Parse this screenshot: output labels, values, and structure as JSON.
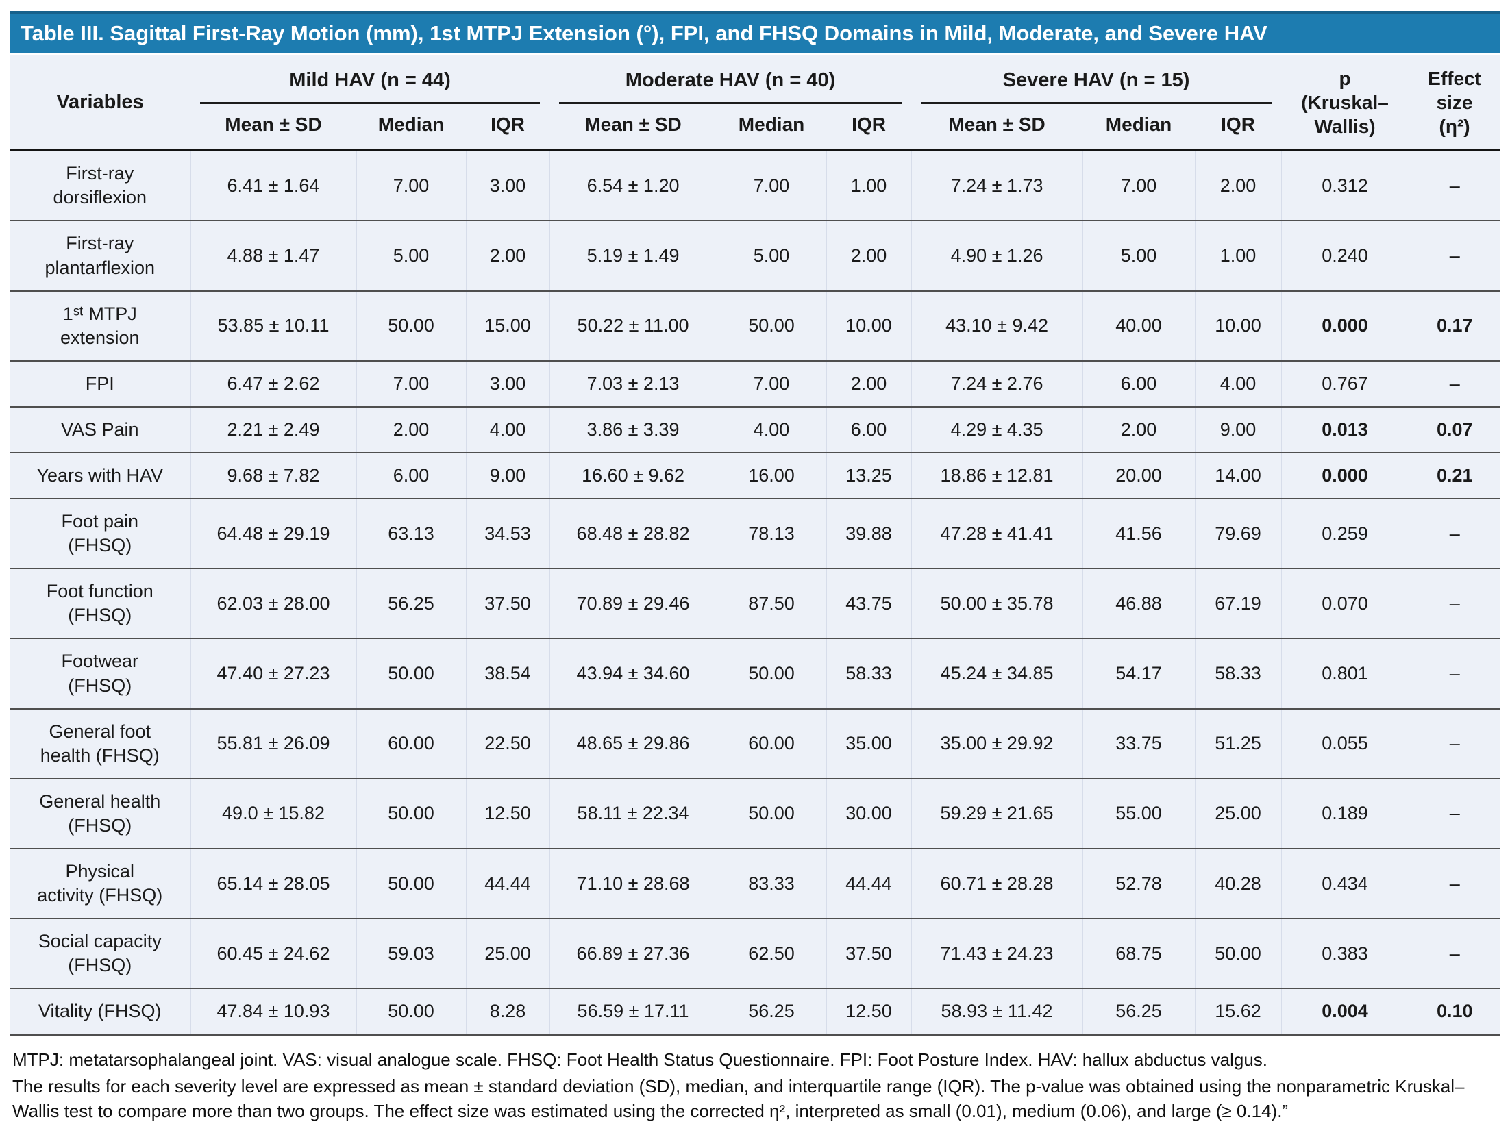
{
  "title": "Table III. Sagittal First-Ray Motion (mm), 1st MTPJ Extension (°), FPI, and FHSQ Domains in Mild, Moderate, and Severe HAV",
  "colors": {
    "header_bar_blue": "#1d7cb0",
    "header_bar_edge": "#16618c",
    "table_background": "#edf1f8",
    "rule_dark": "#4f4f4f",
    "title_text": "#ffffff"
  },
  "header": {
    "variables_label": "Variables",
    "groups": [
      {
        "label": "Mild HAV (n = 44)"
      },
      {
        "label": "Moderate HAV (n = 40)"
      },
      {
        "label": "Severe HAV (n = 15)"
      }
    ],
    "subheaders": [
      "Mean ± SD",
      "Median",
      "IQR"
    ],
    "p_label": "p\n(Kruskal–\nWallis)",
    "effect_label": "Effect\nsize\n(η²)"
  },
  "rows": [
    {
      "label": "First-ray\ndorsiflexion",
      "mild": [
        "6.41 ± 1.64",
        "7.00",
        "3.00"
      ],
      "moderate": [
        "6.54 ± 1.20",
        "7.00",
        "1.00"
      ],
      "severe": [
        "7.24 ± 1.73",
        "7.00",
        "2.00"
      ],
      "p": "0.312",
      "effect": "–",
      "significant": false
    },
    {
      "label": "First-ray\nplantarflexion",
      "mild": [
        "4.88 ± 1.47",
        "5.00",
        "2.00"
      ],
      "moderate": [
        "5.19 ± 1.49",
        "5.00",
        "2.00"
      ],
      "severe": [
        "4.90 ± 1.26",
        "5.00",
        "1.00"
      ],
      "p": "0.240",
      "effect": "–",
      "significant": false
    },
    {
      "label": "1ˢᵗ MTPJ\nextension",
      "mild": [
        "53.85 ± 10.11",
        "50.00",
        "15.00"
      ],
      "moderate": [
        "50.22 ± 11.00",
        "50.00",
        "10.00"
      ],
      "severe": [
        "43.10 ± 9.42",
        "40.00",
        "10.00"
      ],
      "p": "0.000",
      "effect": "0.17",
      "significant": true
    },
    {
      "label": "FPI",
      "mild": [
        "6.47 ± 2.62",
        "7.00",
        "3.00"
      ],
      "moderate": [
        "7.03 ± 2.13",
        "7.00",
        "2.00"
      ],
      "severe": [
        "7.24 ± 2.76",
        "6.00",
        "4.00"
      ],
      "p": "0.767",
      "effect": "–",
      "significant": false
    },
    {
      "label": "VAS Pain",
      "mild": [
        "2.21 ± 2.49",
        "2.00",
        "4.00"
      ],
      "moderate": [
        "3.86 ± 3.39",
        "4.00",
        "6.00"
      ],
      "severe": [
        "4.29 ± 4.35",
        "2.00",
        "9.00"
      ],
      "p": "0.013",
      "effect": "0.07",
      "significant": true
    },
    {
      "label": "Years with HAV",
      "mild": [
        "9.68 ± 7.82",
        "6.00",
        "9.00"
      ],
      "moderate": [
        "16.60 ± 9.62",
        "16.00",
        "13.25"
      ],
      "severe": [
        "18.86 ± 12.81",
        "20.00",
        "14.00"
      ],
      "p": "0.000",
      "effect": "0.21",
      "significant": true
    },
    {
      "label": "Foot pain\n(FHSQ)",
      "mild": [
        "64.48 ± 29.19",
        "63.13",
        "34.53"
      ],
      "moderate": [
        "68.48 ± 28.82",
        "78.13",
        "39.88"
      ],
      "severe": [
        "47.28 ± 41.41",
        "41.56",
        "79.69"
      ],
      "p": "0.259",
      "effect": "–",
      "significant": false
    },
    {
      "label": "Foot function\n(FHSQ)",
      "mild": [
        "62.03 ± 28.00",
        "56.25",
        "37.50"
      ],
      "moderate": [
        "70.89 ± 29.46",
        "87.50",
        "43.75"
      ],
      "severe": [
        "50.00 ± 35.78",
        "46.88",
        "67.19"
      ],
      "p": "0.070",
      "effect": "–",
      "significant": false
    },
    {
      "label": "Footwear\n(FHSQ)",
      "mild": [
        "47.40 ± 27.23",
        "50.00",
        "38.54"
      ],
      "moderate": [
        "43.94 ± 34.60",
        "50.00",
        "58.33"
      ],
      "severe": [
        "45.24 ± 34.85",
        "54.17",
        "58.33"
      ],
      "p": "0.801",
      "effect": "–",
      "significant": false
    },
    {
      "label": "General foot\nhealth (FHSQ)",
      "mild": [
        "55.81 ± 26.09",
        "60.00",
        "22.50"
      ],
      "moderate": [
        "48.65 ± 29.86",
        "60.00",
        "35.00"
      ],
      "severe": [
        "35.00 ± 29.92",
        "33.75",
        "51.25"
      ],
      "p": "0.055",
      "effect": "–",
      "significant": false
    },
    {
      "label": "General health\n(FHSQ)",
      "mild": [
        "49.0 ± 15.82",
        "50.00",
        "12.50"
      ],
      "moderate": [
        "58.11 ± 22.34",
        "50.00",
        "30.00"
      ],
      "severe": [
        "59.29 ± 21.65",
        "55.00",
        "25.00"
      ],
      "p": "0.189",
      "effect": "–",
      "significant": false
    },
    {
      "label": "Physical\nactivity (FHSQ)",
      "mild": [
        "65.14 ± 28.05",
        "50.00",
        "44.44"
      ],
      "moderate": [
        "71.10 ± 28.68",
        "83.33",
        "44.44"
      ],
      "severe": [
        "60.71 ± 28.28",
        "52.78",
        "40.28"
      ],
      "p": "0.434",
      "effect": "–",
      "significant": false
    },
    {
      "label": "Social capacity\n(FHSQ)",
      "mild": [
        "60.45 ± 24.62",
        "59.03",
        "25.00"
      ],
      "moderate": [
        "66.89 ± 27.36",
        "62.50",
        "37.50"
      ],
      "severe": [
        "71.43 ± 24.23",
        "68.75",
        "50.00"
      ],
      "p": "0.383",
      "effect": "–",
      "significant": false
    },
    {
      "label": "Vitality (FHSQ)",
      "mild": [
        "47.84 ± 10.93",
        "50.00",
        "8.28"
      ],
      "moderate": [
        "56.59 ± 17.11",
        "56.25",
        "12.50"
      ],
      "severe": [
        "58.93 ± 11.42",
        "56.25",
        "15.62"
      ],
      "p": "0.004",
      "effect": "0.10",
      "significant": true
    }
  ],
  "footnotes": [
    "MTPJ: metatarsophalangeal joint. VAS: visual analogue scale. FHSQ: Foot Health Status Questionnaire. FPI: Foot Posture Index. HAV: hallux abductus valgus.",
    "The results for each severity level are expressed as mean ± standard deviation (SD), median, and interquartile range (IQR). The p-value was obtained using the nonparametric Kruskal–Wallis test to compare more than two groups. The effect size was estimated using the corrected η², interpreted as small (0.01), medium (0.06), and large (≥ 0.14).”"
  ]
}
